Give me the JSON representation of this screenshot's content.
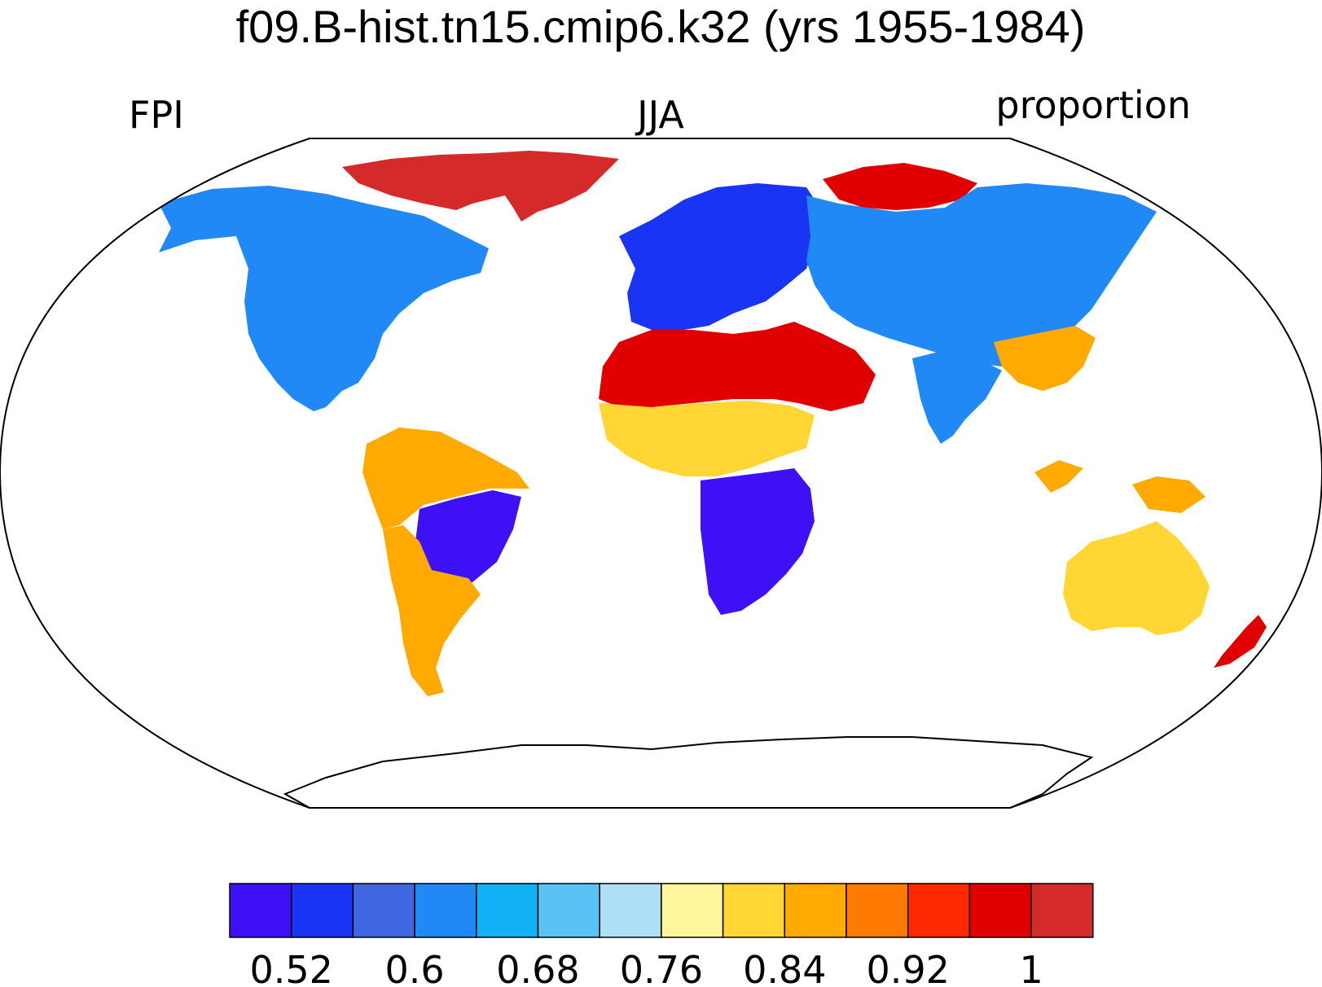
{
  "title": "f09.B-hist.tn15.cmip6.k32 (yrs 1955-1984)",
  "left_string": "FPI",
  "center_string": "JJA",
  "right_string": "proportion",
  "projection": "Robinson",
  "colorbar": {
    "colors": [
      "#3d10f5",
      "#1a34f5",
      "#3f67e0",
      "#2189f5",
      "#10b2f5",
      "#5ac3f5",
      "#aedff5",
      "#fff59a",
      "#ffd633",
      "#ffaa00",
      "#ff7a00",
      "#ff2a00",
      "#e00000",
      "#d42a2a"
    ],
    "ticks": [
      "0.52",
      "0.6",
      "0.68",
      "0.76",
      "0.84",
      "0.92",
      "1"
    ]
  },
  "regions": [
    {
      "name": "north-america",
      "color": "#2189f5"
    },
    {
      "name": "greenland-arctic-canada",
      "color": "#d42a2a"
    },
    {
      "name": "south-america-north",
      "color": "#ffaa00"
    },
    {
      "name": "south-america-brazil",
      "color": "#3d10f5"
    },
    {
      "name": "south-america-south",
      "color": "#ffaa00"
    },
    {
      "name": "europe",
      "color": "#1a34f5"
    },
    {
      "name": "russia-north",
      "color": "#e00000"
    },
    {
      "name": "asia",
      "color": "#2189f5"
    },
    {
      "name": "sahara-arabia",
      "color": "#e00000"
    },
    {
      "name": "sahel",
      "color": "#ffd633"
    },
    {
      "name": "central-africa",
      "color": "#3d10f5"
    },
    {
      "name": "india",
      "color": "#2189f5"
    },
    {
      "name": "east-asia",
      "color": "#ffaa00"
    },
    {
      "name": "australia",
      "color": "#ffd633"
    },
    {
      "name": "new-zealand",
      "color": "#e00000"
    },
    {
      "name": "maritime-continent",
      "color": "#ffaa00"
    },
    {
      "name": "antarctica",
      "color": "#ffffff"
    }
  ]
}
